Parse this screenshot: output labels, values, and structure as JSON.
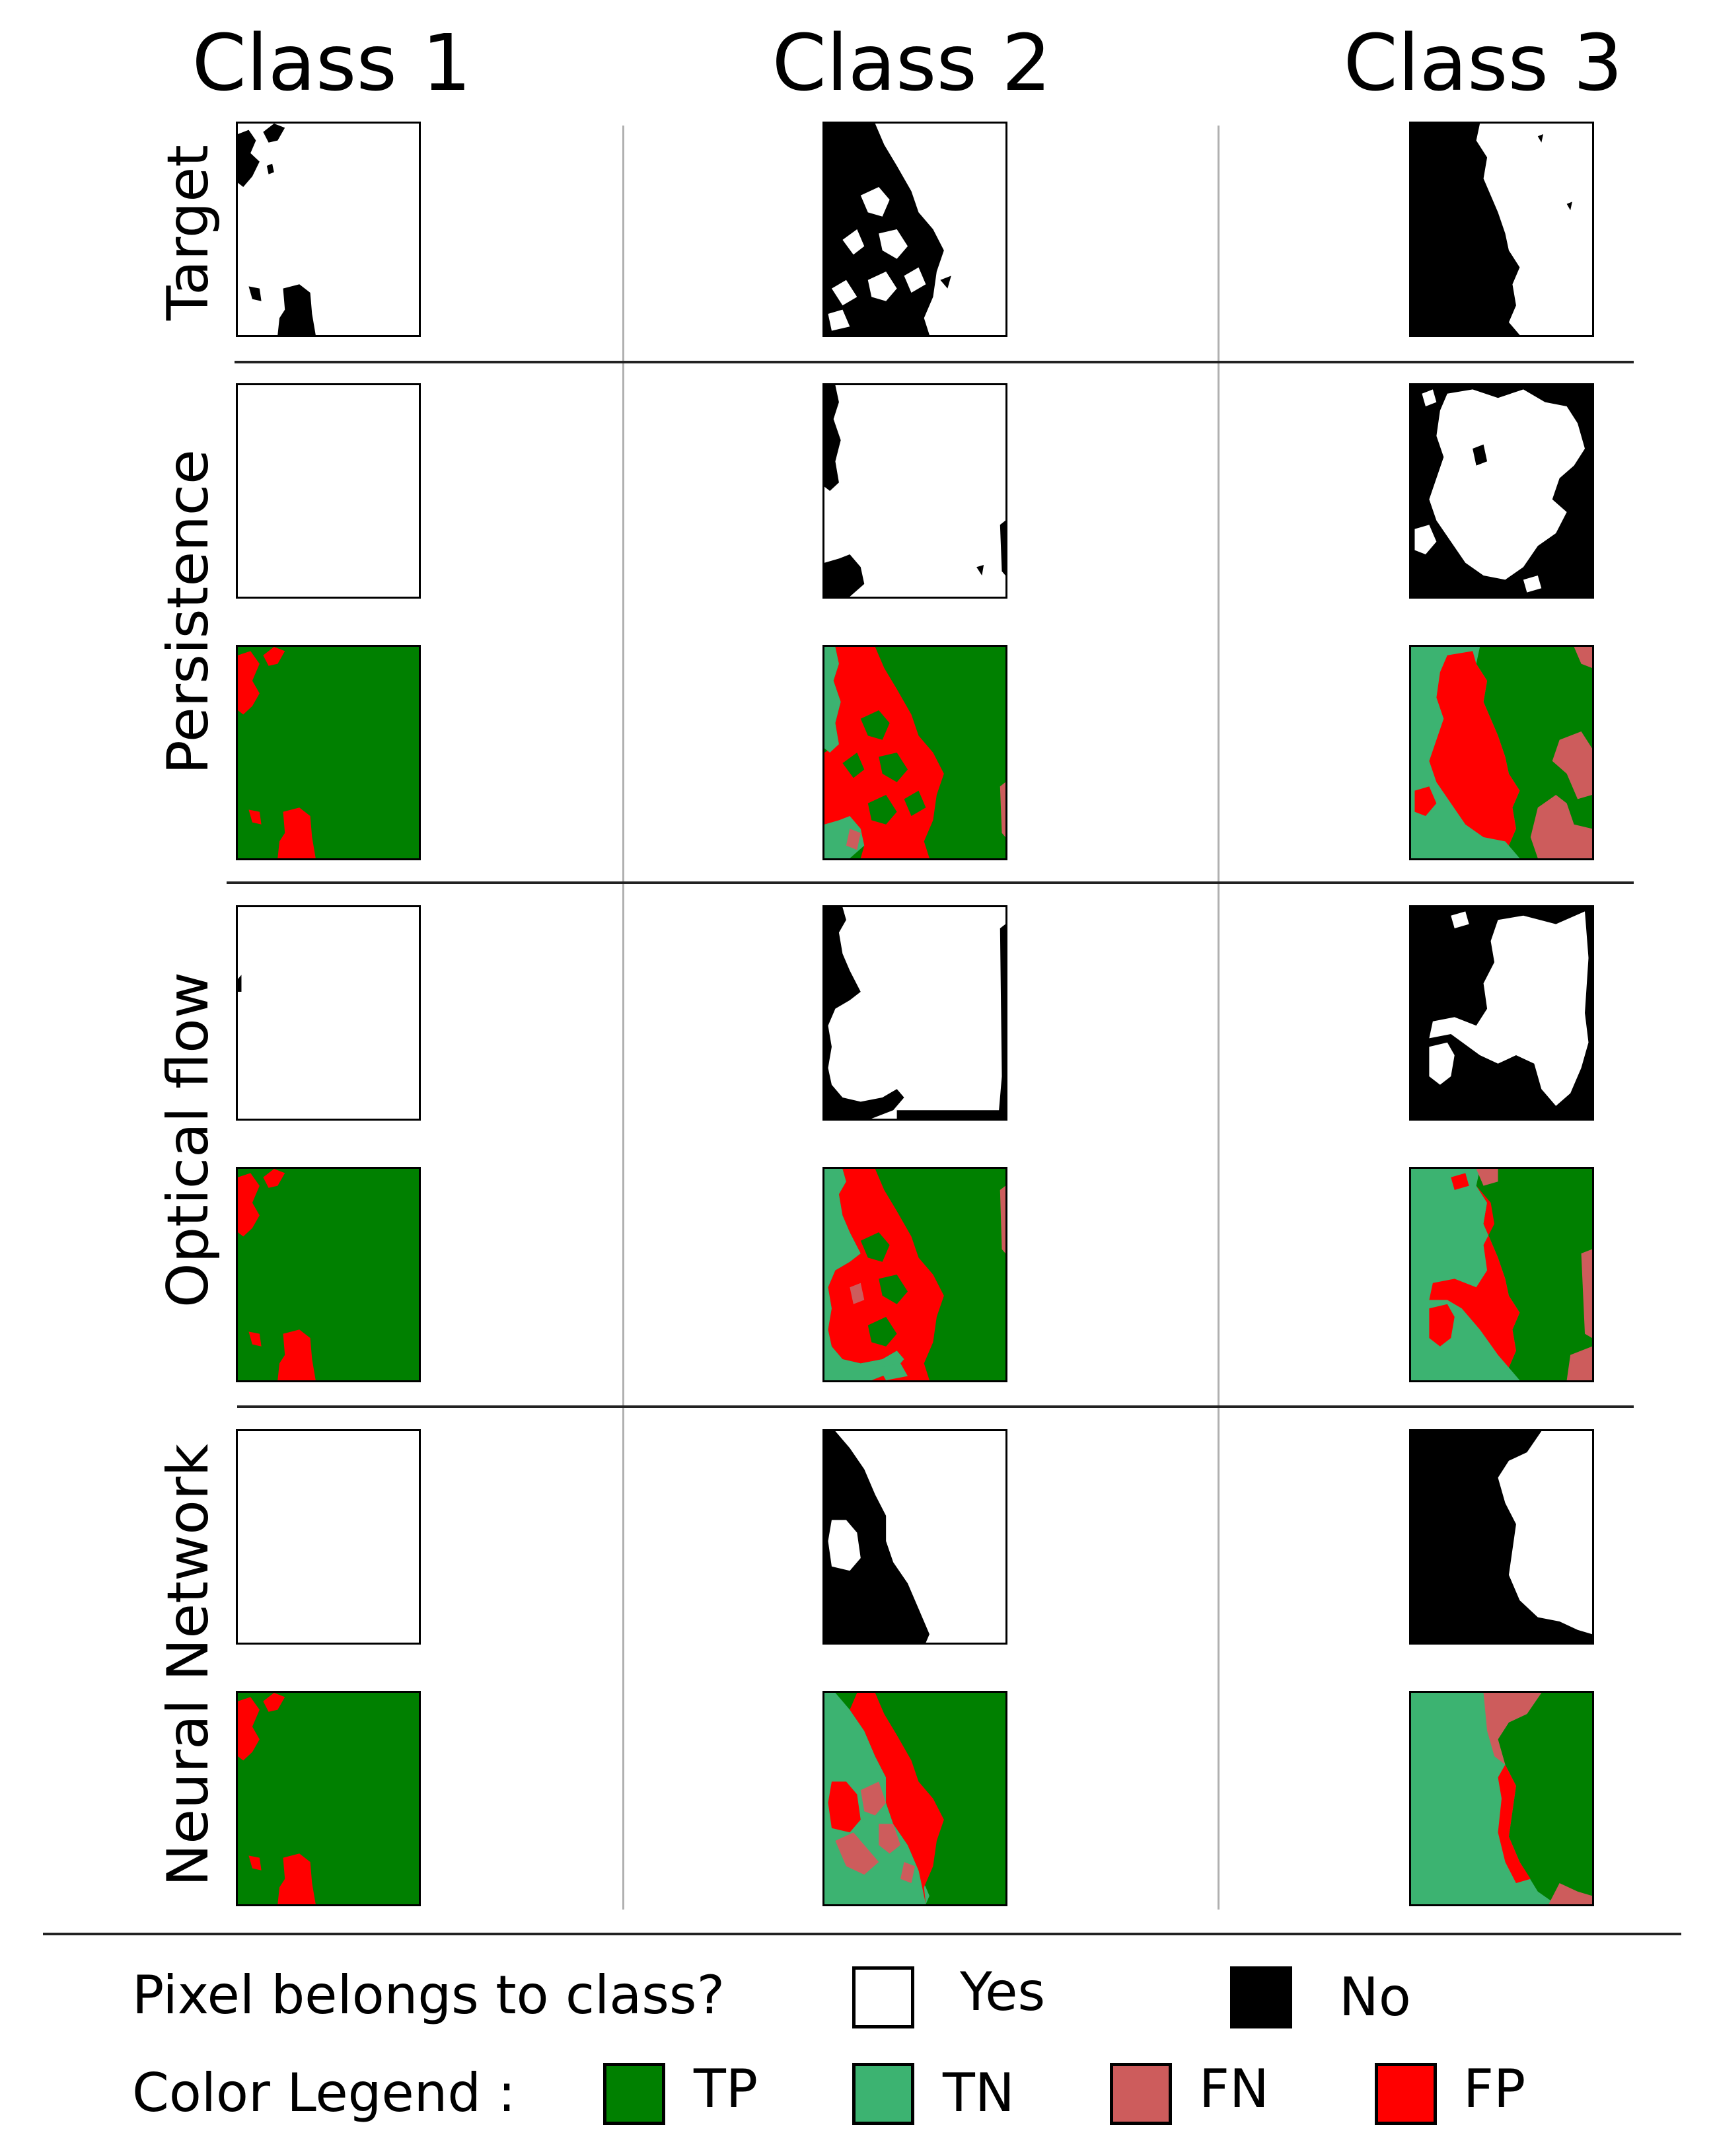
{
  "columns": [
    "Class 1",
    "Class 2",
    "Class 3"
  ],
  "row_labels": {
    "target": "Target",
    "persistence": "Persistence",
    "optical_flow": "Optical flow",
    "neural_network": "Neural Network"
  },
  "legend": {
    "membership_label": "Pixel belongs to class?",
    "yes_label": "Yes",
    "no_label": "No",
    "color_label": "Color Legend :",
    "tp_label": "TP",
    "tn_label": "TN",
    "fn_label": "FN",
    "fp_label": "FP"
  },
  "colors": {
    "yes": "#ffffff",
    "no": "#000000",
    "tp": "#008000",
    "tn": "#3cb371",
    "fn": "#cd5c5c",
    "fp": "#ff0000"
  }
}
